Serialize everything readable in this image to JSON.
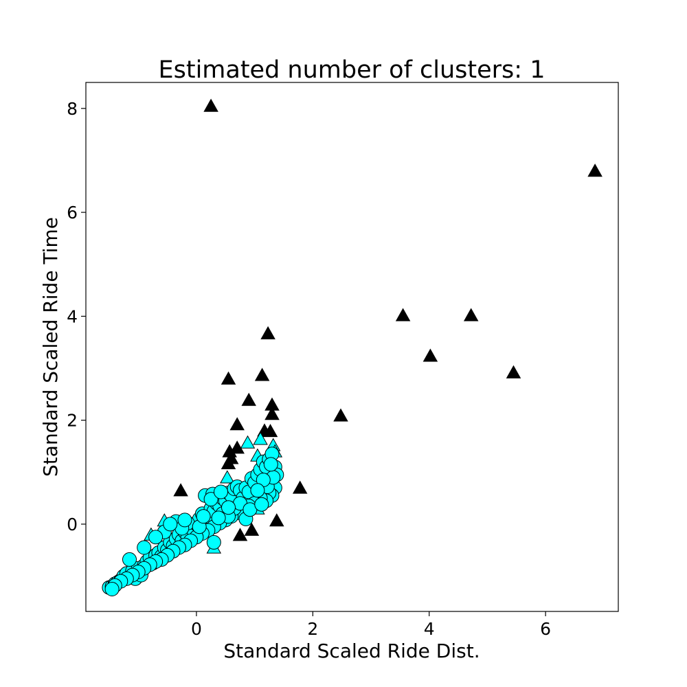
{
  "chart_data": {
    "type": "scatter",
    "title": "Estimated number of clusters: 1",
    "xlabel": "Standard Scaled Ride Dist.",
    "ylabel": "Standard Scaled Ride Time",
    "xlim": [
      -1.9,
      7.25
    ],
    "ylim": [
      -1.68,
      8.5
    ],
    "xticks": [
      0,
      2,
      4,
      6
    ],
    "yticks": [
      0,
      2,
      4,
      6,
      8
    ],
    "grid": false,
    "legend": "none",
    "colors": {
      "cluster": "#00ffff",
      "noise": "#000000",
      "edge": "#000000"
    },
    "series": [
      {
        "marker": "triangle",
        "color": "#000000",
        "points": [
          [
            0.25,
            8.03
          ],
          [
            6.85,
            6.78
          ],
          [
            3.55,
            4.0
          ],
          [
            4.72,
            4.0
          ],
          [
            4.02,
            3.22
          ],
          [
            5.45,
            2.9
          ],
          [
            1.23,
            3.65
          ],
          [
            0.55,
            2.78
          ],
          [
            1.13,
            2.85
          ],
          [
            2.48,
            2.07
          ],
          [
            0.9,
            2.37
          ],
          [
            1.3,
            2.28
          ],
          [
            1.3,
            2.1
          ],
          [
            0.7,
            1.9
          ],
          [
            1.17,
            1.78
          ],
          [
            1.27,
            1.77
          ],
          [
            0.7,
            1.45
          ],
          [
            0.57,
            1.38
          ],
          [
            0.6,
            1.25
          ],
          [
            0.55,
            1.15
          ],
          [
            -0.27,
            0.63
          ],
          [
            1.78,
            0.68
          ],
          [
            1.38,
            0.05
          ],
          [
            0.95,
            -0.13
          ],
          [
            0.75,
            -0.23
          ]
        ]
      },
      {
        "marker": "triangle",
        "color": "#00ffff",
        "points": [
          [
            -0.55,
            0.05
          ],
          [
            -0.78,
            -0.22
          ],
          [
            0.3,
            -0.47
          ],
          [
            0.53,
            0.88
          ],
          [
            0.88,
            1.55
          ],
          [
            1.1,
            1.62
          ],
          [
            1.32,
            1.5
          ],
          [
            1.35,
            1.38
          ],
          [
            1.05,
            1.3
          ],
          [
            1.05,
            0.28
          ]
        ]
      },
      {
        "marker": "circle",
        "color": "#00ffff",
        "points": [
          [
            -1.5,
            -1.22
          ],
          [
            -1.45,
            -1.2
          ],
          [
            -1.4,
            -1.15
          ],
          [
            -1.35,
            -1.12
          ],
          [
            -1.3,
            -1.08
          ],
          [
            -1.25,
            -1.0
          ],
          [
            -1.2,
            -0.95
          ],
          [
            -1.15,
            -1.02
          ],
          [
            -1.1,
            -0.9
          ],
          [
            -1.05,
            -1.05
          ],
          [
            -1.0,
            -0.85
          ],
          [
            -0.95,
            -0.98
          ],
          [
            -0.9,
            -0.8
          ],
          [
            -0.85,
            -0.72
          ],
          [
            -0.8,
            -0.65
          ],
          [
            -0.75,
            -0.75
          ],
          [
            -0.7,
            -0.6
          ],
          [
            -0.65,
            -0.55
          ],
          [
            -0.6,
            -0.62
          ],
          [
            -0.55,
            -0.45
          ],
          [
            -0.5,
            -0.5
          ],
          [
            -0.45,
            -0.35
          ],
          [
            -0.4,
            -0.42
          ],
          [
            -0.35,
            -0.28
          ],
          [
            -0.3,
            -0.2
          ],
          [
            -0.25,
            -0.32
          ],
          [
            -0.2,
            -0.15
          ],
          [
            -0.15,
            -0.25
          ],
          [
            -0.1,
            -0.05
          ],
          [
            -0.05,
            -0.12
          ],
          [
            0.0,
            0.0
          ],
          [
            0.05,
            0.1
          ],
          [
            0.1,
            0.2
          ],
          [
            0.15,
            0.05
          ],
          [
            0.2,
            0.15
          ],
          [
            0.25,
            0.3
          ],
          [
            0.3,
            0.25
          ],
          [
            0.35,
            0.4
          ],
          [
            0.4,
            0.35
          ],
          [
            0.45,
            0.5
          ],
          [
            0.5,
            0.45
          ],
          [
            0.55,
            0.6
          ],
          [
            0.6,
            0.55
          ],
          [
            0.65,
            0.68
          ],
          [
            0.7,
            0.72
          ],
          [
            0.75,
            0.65
          ],
          [
            0.8,
            0.5
          ],
          [
            0.85,
            0.7
          ],
          [
            0.9,
            0.62
          ],
          [
            0.95,
            0.88
          ],
          [
            1.0,
            0.8
          ],
          [
            1.05,
            0.95
          ],
          [
            1.1,
            1.05
          ],
          [
            1.15,
            1.2
          ],
          [
            1.2,
            1.1
          ],
          [
            1.25,
            1.25
          ],
          [
            1.3,
            1.35
          ],
          [
            1.35,
            1.1
          ],
          [
            1.38,
            0.95
          ],
          [
            1.35,
            0.7
          ],
          [
            1.3,
            0.55
          ],
          [
            1.25,
            0.6
          ],
          [
            1.2,
            0.45
          ],
          [
            1.1,
            0.5
          ],
          [
            1.0,
            0.4
          ],
          [
            0.9,
            0.35
          ],
          [
            0.8,
            0.28
          ],
          [
            0.7,
            0.22
          ],
          [
            0.6,
            0.15
          ],
          [
            0.5,
            0.08
          ],
          [
            0.4,
            0.02
          ],
          [
            0.3,
            -0.05
          ],
          [
            0.2,
            -0.12
          ],
          [
            0.1,
            -0.18
          ],
          [
            0.0,
            -0.25
          ],
          [
            -0.1,
            -0.32
          ],
          [
            -0.2,
            -0.4
          ],
          [
            -0.3,
            -0.45
          ],
          [
            -0.4,
            -0.52
          ],
          [
            -0.5,
            -0.6
          ],
          [
            -0.6,
            -0.68
          ],
          [
            -0.7,
            -0.72
          ],
          [
            -0.8,
            -0.78
          ],
          [
            -0.9,
            -0.85
          ],
          [
            -1.0,
            -0.92
          ],
          [
            -1.1,
            -0.98
          ],
          [
            -1.2,
            -1.05
          ],
          [
            -1.3,
            -1.1
          ],
          [
            -1.4,
            -1.18
          ],
          [
            -1.45,
            -1.25
          ],
          [
            0.15,
            0.55
          ],
          [
            0.28,
            0.58
          ],
          [
            0.45,
            0.2
          ],
          [
            0.65,
            0.3
          ],
          [
            0.85,
            0.1
          ],
          [
            -0.55,
            -0.15
          ],
          [
            -0.7,
            -0.25
          ],
          [
            -0.9,
            -0.45
          ],
          [
            -1.15,
            -0.68
          ],
          [
            -0.35,
            0.05
          ],
          [
            -0.15,
            0.02
          ],
          [
            0.05,
            -0.05
          ],
          [
            0.3,
            -0.35
          ],
          [
            0.55,
            0.15
          ],
          [
            0.75,
            0.4
          ],
          [
            0.92,
            0.28
          ],
          [
            1.12,
            0.38
          ],
          [
            1.22,
            0.72
          ],
          [
            1.32,
            0.9
          ],
          [
            1.15,
            0.85
          ],
          [
            1.05,
            0.65
          ],
          [
            0.55,
            0.32
          ],
          [
            0.38,
            0.12
          ],
          [
            -0.25,
            -0.08
          ],
          [
            -0.45,
            0.0
          ],
          [
            -0.2,
            0.08
          ],
          [
            0.12,
            0.15
          ],
          [
            0.25,
            0.48
          ],
          [
            0.42,
            0.62
          ],
          [
            1.28,
            1.15
          ]
        ]
      }
    ]
  }
}
